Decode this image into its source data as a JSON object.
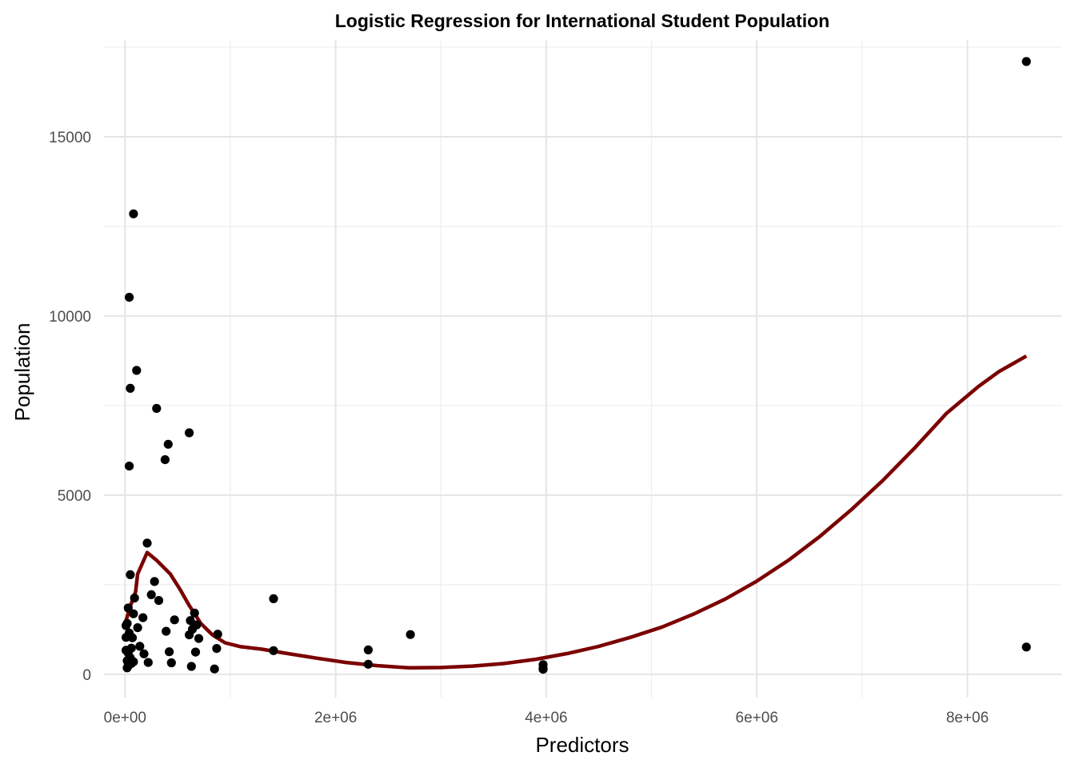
{
  "chart_data": {
    "type": "scatter",
    "title": "Logistic Regression for International Student Population",
    "xlabel": "Predictors",
    "ylabel": "Population",
    "xlim": [
      -200000,
      8900000
    ],
    "ylim": [
      -650,
      17700
    ],
    "x_ticks": [
      0,
      2000000,
      4000000,
      6000000,
      8000000
    ],
    "x_tick_labels": [
      "0e+00",
      "2e+06",
      "4e+06",
      "6e+06",
      "8e+06"
    ],
    "y_ticks": [
      0,
      5000,
      10000,
      15000
    ],
    "y_tick_labels": [
      "0",
      "5000",
      "10000",
      "15000"
    ],
    "grid": true,
    "point_color": "#000000",
    "line_color": "#7b0000",
    "points": [
      {
        "x": 8560000,
        "y": 17100
      },
      {
        "x": 80000,
        "y": 12850
      },
      {
        "x": 40000,
        "y": 10520
      },
      {
        "x": 110000,
        "y": 8480
      },
      {
        "x": 50000,
        "y": 7980
      },
      {
        "x": 300000,
        "y": 7420
      },
      {
        "x": 610000,
        "y": 6740
      },
      {
        "x": 410000,
        "y": 6420
      },
      {
        "x": 380000,
        "y": 5990
      },
      {
        "x": 40000,
        "y": 5810
      },
      {
        "x": 210000,
        "y": 3660
      },
      {
        "x": 50000,
        "y": 2780
      },
      {
        "x": 280000,
        "y": 2590
      },
      {
        "x": 250000,
        "y": 2220
      },
      {
        "x": 90000,
        "y": 2130
      },
      {
        "x": 1410000,
        "y": 2110
      },
      {
        "x": 320000,
        "y": 2060
      },
      {
        "x": 30000,
        "y": 1850
      },
      {
        "x": 660000,
        "y": 1710
      },
      {
        "x": 80000,
        "y": 1690
      },
      {
        "x": 170000,
        "y": 1580
      },
      {
        "x": 470000,
        "y": 1520
      },
      {
        "x": 620000,
        "y": 1500
      },
      {
        "x": 20000,
        "y": 1420
      },
      {
        "x": 10000,
        "y": 1360
      },
      {
        "x": 680000,
        "y": 1380
      },
      {
        "x": 120000,
        "y": 1300
      },
      {
        "x": 640000,
        "y": 1260
      },
      {
        "x": 390000,
        "y": 1200
      },
      {
        "x": 40000,
        "y": 1150
      },
      {
        "x": 610000,
        "y": 1100
      },
      {
        "x": 2710000,
        "y": 1110
      },
      {
        "x": 880000,
        "y": 1120
      },
      {
        "x": 10000,
        "y": 1030
      },
      {
        "x": 70000,
        "y": 1020
      },
      {
        "x": 700000,
        "y": 1000
      },
      {
        "x": 140000,
        "y": 780
      },
      {
        "x": 870000,
        "y": 720
      },
      {
        "x": 60000,
        "y": 730
      },
      {
        "x": 8560000,
        "y": 760
      },
      {
        "x": 10000,
        "y": 670
      },
      {
        "x": 1410000,
        "y": 660
      },
      {
        "x": 2310000,
        "y": 680
      },
      {
        "x": 420000,
        "y": 630
      },
      {
        "x": 670000,
        "y": 620
      },
      {
        "x": 30000,
        "y": 600
      },
      {
        "x": 180000,
        "y": 570
      },
      {
        "x": 50000,
        "y": 460
      },
      {
        "x": 20000,
        "y": 380
      },
      {
        "x": 80000,
        "y": 350
      },
      {
        "x": 220000,
        "y": 330
      },
      {
        "x": 440000,
        "y": 320
      },
      {
        "x": 60000,
        "y": 300
      },
      {
        "x": 2310000,
        "y": 280
      },
      {
        "x": 3970000,
        "y": 270
      },
      {
        "x": 30000,
        "y": 240
      },
      {
        "x": 630000,
        "y": 220
      },
      {
        "x": 20000,
        "y": 180
      },
      {
        "x": 3970000,
        "y": 170
      },
      {
        "x": 850000,
        "y": 150
      },
      {
        "x": 3970000,
        "y": 140
      }
    ],
    "fit_line": [
      {
        "x": 0,
        "y": 1400
      },
      {
        "x": 50000,
        "y": 1900
      },
      {
        "x": 100000,
        "y": 2300
      },
      {
        "x": 120000,
        "y": 2800
      },
      {
        "x": 210000,
        "y": 3400
      },
      {
        "x": 300000,
        "y": 3180
      },
      {
        "x": 430000,
        "y": 2800
      },
      {
        "x": 520000,
        "y": 2380
      },
      {
        "x": 610000,
        "y": 1920
      },
      {
        "x": 720000,
        "y": 1420
      },
      {
        "x": 830000,
        "y": 1100
      },
      {
        "x": 950000,
        "y": 880
      },
      {
        "x": 1100000,
        "y": 770
      },
      {
        "x": 1300000,
        "y": 700
      },
      {
        "x": 1500000,
        "y": 600
      },
      {
        "x": 1800000,
        "y": 460
      },
      {
        "x": 2100000,
        "y": 330
      },
      {
        "x": 2400000,
        "y": 240
      },
      {
        "x": 2700000,
        "y": 180
      },
      {
        "x": 3000000,
        "y": 190
      },
      {
        "x": 3300000,
        "y": 230
      },
      {
        "x": 3600000,
        "y": 300
      },
      {
        "x": 3900000,
        "y": 420
      },
      {
        "x": 4200000,
        "y": 580
      },
      {
        "x": 4500000,
        "y": 780
      },
      {
        "x": 4800000,
        "y": 1030
      },
      {
        "x": 5100000,
        "y": 1320
      },
      {
        "x": 5400000,
        "y": 1680
      },
      {
        "x": 5700000,
        "y": 2100
      },
      {
        "x": 6000000,
        "y": 2600
      },
      {
        "x": 6300000,
        "y": 3180
      },
      {
        "x": 6600000,
        "y": 3850
      },
      {
        "x": 6900000,
        "y": 4600
      },
      {
        "x": 7200000,
        "y": 5420
      },
      {
        "x": 7500000,
        "y": 6320
      },
      {
        "x": 7800000,
        "y": 7280
      },
      {
        "x": 8100000,
        "y": 8020
      },
      {
        "x": 8300000,
        "y": 8450
      },
      {
        "x": 8560000,
        "y": 8880
      }
    ]
  }
}
